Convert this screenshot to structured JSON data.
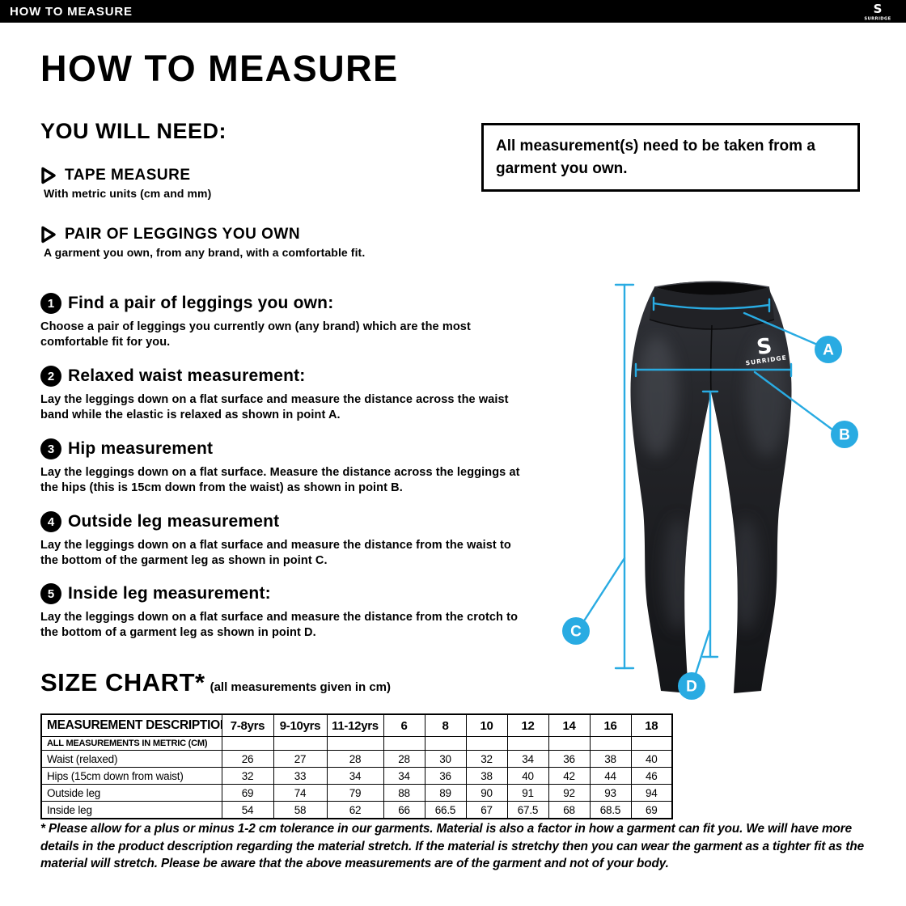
{
  "brand": {
    "initial": "S",
    "name": "SURRIDGE"
  },
  "topbar": {
    "title": "HOW TO MEASURE"
  },
  "heading": "HOW TO MEASURE",
  "you_will_need": {
    "heading": "YOU WILL NEED:",
    "items": [
      {
        "label": "TAPE MEASURE",
        "description": "With metric units (cm and mm)"
      },
      {
        "label": "PAIR OF LEGGINGS YOU OWN",
        "description": "A garment you own, from any brand, with a comfortable fit."
      }
    ]
  },
  "note_box": {
    "text": "All measurement(s) need to be taken from a garment you own."
  },
  "steps": [
    {
      "number": "1",
      "title": "Find a pair of leggings you own:",
      "body": "Choose a pair of leggings you currently own (any brand) which are the most comfortable fit for you."
    },
    {
      "number": "2",
      "title": "Relaxed waist measurement:",
      "body": "Lay the leggings down on a flat surface and measure the distance across the waist band while the elastic is relaxed as shown in point A."
    },
    {
      "number": "3",
      "title": "Hip measurement",
      "body": "Lay the leggings down on a flat surface. Measure the distance across the leggings at the hips (this is 15cm down from the waist) as shown in point B."
    },
    {
      "number": "4",
      "title": "Outside leg measurement",
      "body": "Lay the leggings down on a flat surface and measure the distance from the waist to the bottom of the garment leg as shown in point C."
    },
    {
      "number": "5",
      "title": "Inside leg measurement:",
      "body": "Lay the leggings down on a flat surface and measure the distance from the crotch to the bottom of a garment leg as shown in point D."
    }
  ],
  "diagram": {
    "labels": {
      "a": "A",
      "b": "B",
      "c": "C",
      "d": "D"
    },
    "accent_color": "#29ABE2",
    "garment_color": "#1b1c1f"
  },
  "size_chart": {
    "heading": "SIZE CHART*",
    "subheading": "(all measurements given in cm)",
    "metric_note": "ALL MEASUREMENTS IN METRIC (CM)",
    "columns": [
      "MEASUREMENT DESCRIPTION",
      "7-8yrs",
      "9-10yrs",
      "11-12yrs",
      "6",
      "8",
      "10",
      "12",
      "14",
      "16",
      "18"
    ],
    "rows": [
      {
        "label": "Waist (relaxed)",
        "values": [
          "26",
          "27",
          "28",
          "28",
          "30",
          "32",
          "34",
          "36",
          "38",
          "40"
        ]
      },
      {
        "label": "Hips (15cm down from waist)",
        "values": [
          "32",
          "33",
          "34",
          "34",
          "36",
          "38",
          "40",
          "42",
          "44",
          "46"
        ]
      },
      {
        "label": "Outside leg",
        "values": [
          "69",
          "74",
          "79",
          "88",
          "89",
          "90",
          "91",
          "92",
          "93",
          "94"
        ]
      },
      {
        "label": "Inside leg",
        "values": [
          "54",
          "58",
          "62",
          "66",
          "66.5",
          "67",
          "67.5",
          "68",
          "68.5",
          "69"
        ]
      }
    ]
  },
  "footnote": "* Please allow for a plus or minus 1-2 cm tolerance in our garments. Material is also a factor in how a garment can fit you. We will have more details in the product description regarding the material stretch.  If the material is stretchy then you can wear the garment as a tighter fit as the material will stretch.  Please be aware that the above measurements are of the garment and not of your body."
}
